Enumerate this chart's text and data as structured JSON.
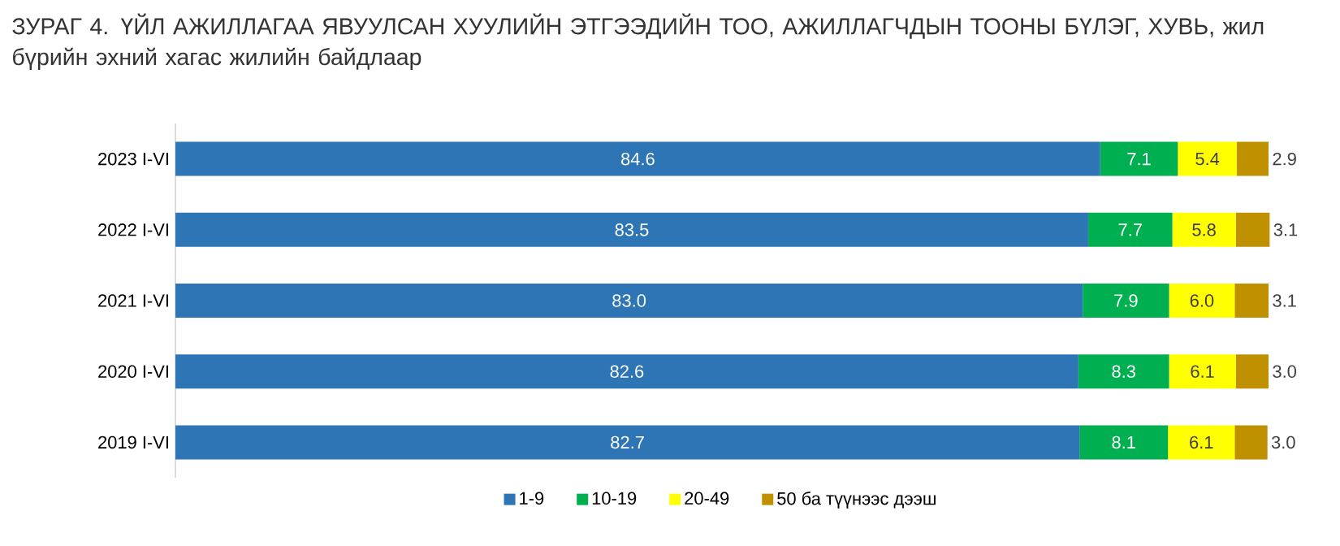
{
  "chart_data": {
    "type": "bar",
    "orientation": "horizontal",
    "stacked": true,
    "title": "ЗУРАГ 4.    ҮЙЛ АЖИЛЛАГАА ЯВУУЛСАН ХУУЛИЙН ЭТГЭЭДИЙН ТОО, АЖИЛЛАГЧДЫН ТООНЫ БҮЛЭГ, ХУВЬ, жил бүрийн эхний хагас жилийн байдлаар",
    "categories": [
      "2023 I-VI",
      "2022 I-VI",
      "2021 I-VI",
      "2020 I-VI",
      "2019 I-VI"
    ],
    "xlim": [
      0,
      100
    ],
    "tick_labels": "y",
    "legend": "bottom",
    "series": [
      {
        "name": "1-9",
        "color": "#2e75b6",
        "values": [
          84.6,
          83.5,
          83.0,
          82.6,
          82.7
        ],
        "value_labels": [
          "84.6",
          "83.5",
          "83.0",
          "82.6",
          "82.7"
        ]
      },
      {
        "name": "10-19",
        "color": "#00b050",
        "values": [
          7.1,
          7.7,
          7.9,
          8.3,
          8.1
        ],
        "value_labels": [
          "7.1",
          "7.7",
          "7.9",
          "8.3",
          "8.1"
        ]
      },
      {
        "name": "20-49",
        "color": "#ffff00",
        "values": [
          5.4,
          5.8,
          6.0,
          6.1,
          6.1
        ],
        "value_labels": [
          "5.4",
          "5.8",
          "6.0",
          "6.1",
          "6.1"
        ]
      },
      {
        "name": "50 ба түүнээс дээш",
        "color": "#bf9000",
        "values": [
          2.9,
          3.1,
          3.1,
          3.0,
          3.0
        ],
        "value_labels": [
          "2.9",
          "3.1",
          "3.1",
          "3.0",
          "3.0"
        ]
      }
    ]
  }
}
